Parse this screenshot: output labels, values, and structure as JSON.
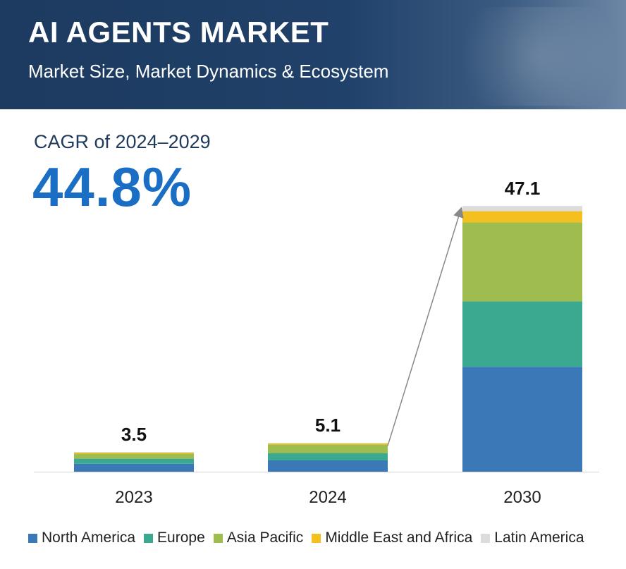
{
  "header": {
    "title": "AI AGENTS MARKET",
    "subtitle": "Market Size, Market Dynamics & Ecosystem"
  },
  "cagr": {
    "label": "CAGR of 2024–2029",
    "value": "44.8%"
  },
  "colors": {
    "header_bg": "#1d3a5f",
    "cagr_value": "#1a6fc4"
  },
  "chart_data": {
    "type": "bar",
    "stacked": true,
    "categories": [
      "2023",
      "2024",
      "2030"
    ],
    "totals": [
      3.5,
      5.1,
      47.1
    ],
    "total_labels": [
      "3.5",
      "5.1",
      "47.1"
    ],
    "series": [
      {
        "name": "North America",
        "color": "#3a78b8",
        "values": [
          1.4,
          2.0,
          18.6
        ]
      },
      {
        "name": "Europe",
        "color": "#3aa98f",
        "values": [
          0.9,
          1.3,
          11.6
        ]
      },
      {
        "name": "Asia Pacific",
        "color": "#9fbc4f",
        "values": [
          0.9,
          1.5,
          14.0
        ]
      },
      {
        "name": "Middle East and Africa",
        "color": "#f4c020",
        "values": [
          0.2,
          0.2,
          2.0
        ]
      },
      {
        "name": "Latin America",
        "color": "#dcdcdc",
        "values": [
          0.1,
          0.1,
          0.9
        ]
      }
    ],
    "ylim": [
      0,
      50
    ],
    "annotation": "growth arrow from 2024 bar to 2030 bar",
    "legend_position": "bottom"
  }
}
